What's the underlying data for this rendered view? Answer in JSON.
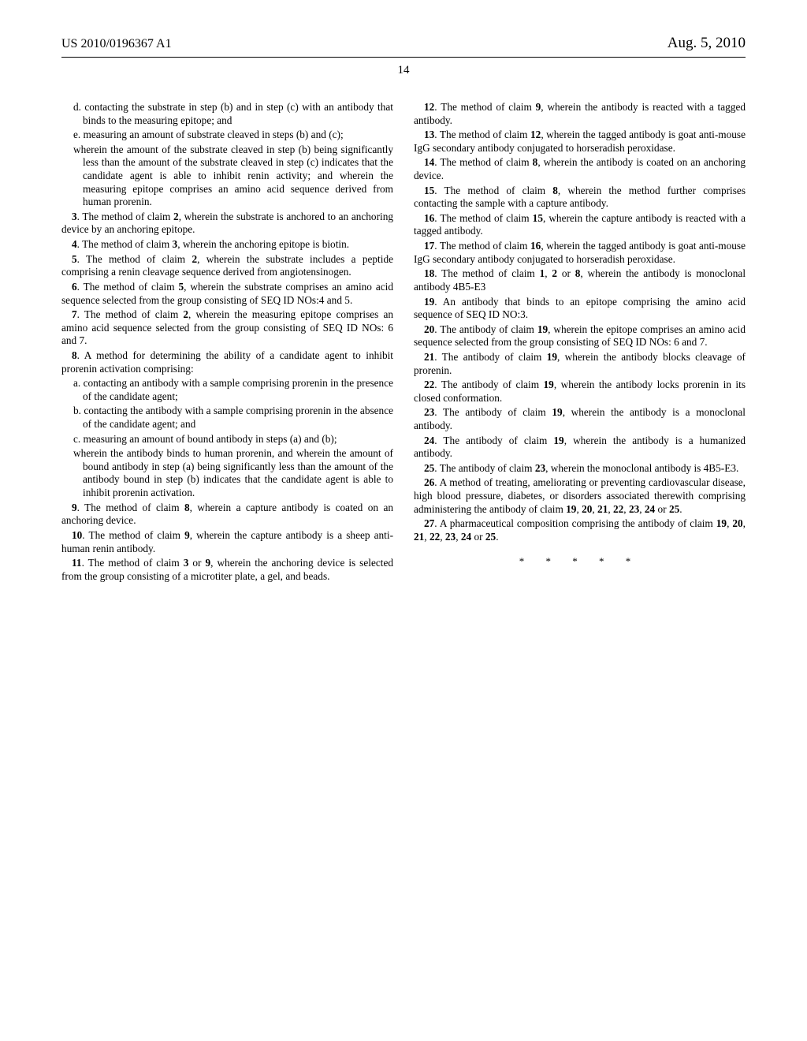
{
  "header": {
    "pub_number": "US 2010/0196367 A1",
    "pub_date": "Aug. 5, 2010",
    "page_number": "14"
  },
  "left_col": {
    "sub_d": "d. contacting the substrate in step (b) and in step (c) with an antibody that binds to the measuring epitope; and",
    "sub_e": "e. measuring an amount of substrate cleaved in steps (b) and (c);",
    "sub_wherein1": "wherein the amount of the substrate cleaved in step (b) being significantly less than the amount of the substrate cleaved in step (c) indicates that the candidate agent is able to inhibit renin activity; and wherein the measuring epitope comprises an amino acid sequence derived from human prorenin.",
    "c3": ". The method of claim ",
    "c3b": ", wherein the substrate is anchored to an anchoring device by an anchoring epitope.",
    "c4": ". The method of claim ",
    "c4b": ", wherein the anchoring epitope is biotin.",
    "c5": ". The method of claim ",
    "c5b": ", wherein the substrate includes a peptide comprising a renin cleavage sequence derived from angiotensinogen.",
    "c6": ". The method of claim ",
    "c6b": ", wherein the substrate comprises an amino acid sequence selected from the group consisting of SEQ ID NOs:4 and 5.",
    "c7": ". The method of claim ",
    "c7b": ", wherein the measuring epitope comprises an amino acid sequence selected from the group consisting of SEQ ID NOs: 6 and 7.",
    "c8": ". A method for determining the ability of a candidate agent to inhibit prorenin activation comprising:",
    "c8a": "a. contacting an antibody with a sample comprising prorenin in the presence of the candidate agent;",
    "c8b": "b. contacting the antibody with a sample comprising prorenin in the absence of the candidate agent; and",
    "c8c": "c. measuring an amount of bound antibody in steps (a) and (b);",
    "c8w": "wherein the antibody binds to human prorenin, and wherein the amount of bound antibody in step (a) being significantly less than the amount of the antibody bound in step (b) indicates that the candidate agent is able to inhibit prorenin activation.",
    "c9": ". The method of claim ",
    "c9b": ", wherein a capture antibody is coated on an anchoring device.",
    "c10": ". The method of claim ",
    "c10b": ", wherein the capture antibody is a sheep anti-human renin antibody."
  },
  "right_col": {
    "c11": ". The method of claim ",
    "c11b": ", wherein the anchoring device is selected from the group consisting of a microtiter plate, a gel, and beads.",
    "c12": ". The method of claim ",
    "c12b": ", wherein the antibody is reacted with a tagged antibody.",
    "c13": ". The method of claim ",
    "c13b": ", wherein the tagged antibody is goat anti-mouse IgG secondary antibody conjugated to horseradish peroxidase.",
    "c14": ". The method of claim ",
    "c14b": ", wherein the antibody is coated on an anchoring device.",
    "c15": ". The method of claim ",
    "c15b": ", wherein the method further comprises contacting the sample with a capture antibody.",
    "c16": ". The method of claim ",
    "c16b": ", wherein the capture antibody is reacted with a tagged antibody.",
    "c17": ". The method of claim ",
    "c17b": ", wherein the tagged antibody is goat anti-mouse IgG secondary antibody conjugated to horseradish peroxidase.",
    "c18": ". The method of claim ",
    "c18b": ", wherein the antibody is monoclonal antibody 4B5-E3",
    "c19": ". An antibody that binds to an epitope comprising the amino acid sequence of SEQ ID NO:3.",
    "c20": ". The antibody of claim ",
    "c20b": ", wherein the epitope comprises an amino acid sequence selected from the group consisting of SEQ ID NOs: 6 and 7.",
    "c21": ". The antibody of claim ",
    "c21b": ", wherein the antibody blocks cleavage of prorenin.",
    "c22": ". The antibody of claim ",
    "c22b": ", wherein the antibody locks prorenin in its closed conformation.",
    "c23": ". The antibody of claim ",
    "c23b": ", wherein the antibody is a monoclonal antibody.",
    "c24": ". The antibody of claim ",
    "c24b": ", wherein the antibody is a humanized antibody.",
    "c25": ". The antibody of claim ",
    "c25b": ", wherein the monoclonal antibody is 4B5-E3.",
    "c26": ". A method of treating, ameliorating or preventing cardiovascular disease, high blood pressure, diabetes, or disorders associated therewith comprising administering the antibody of claim ",
    "c27": ". A pharmaceutical composition comprising the antibody of claim ",
    "or": " or ",
    "comma": ", ",
    "period": "."
  },
  "claim_nums": {
    "n1": "1",
    "n2": "2",
    "n3": "3",
    "n4": "4",
    "n5": "5",
    "n6": "6",
    "n7": "7",
    "n8": "8",
    "n9": "9",
    "n10": "10",
    "n11": "11",
    "n12": "12",
    "n13": "13",
    "n14": "14",
    "n15": "15",
    "n16": "16",
    "n17": "17",
    "n18": "18",
    "n19": "19",
    "n20": "20",
    "n21": "21",
    "n22": "22",
    "n23": "23",
    "n24": "24",
    "n25": "25",
    "n26": "26",
    "n27": "27"
  },
  "end_marks": "* * * * *"
}
